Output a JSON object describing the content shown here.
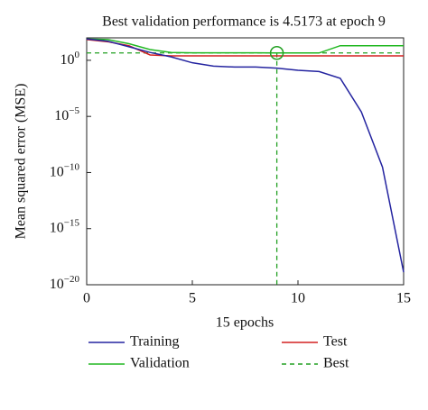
{
  "chart_data": {
    "type": "line",
    "title": "Best validation performance is 4.5173 at epoch 9",
    "xlabel": "15 epochs",
    "ylabel": "Mean squared error (MSE)",
    "x": [
      0,
      1,
      2,
      3,
      4,
      5,
      6,
      7,
      8,
      9,
      10,
      11,
      12,
      13,
      14,
      15
    ],
    "xlim": [
      0,
      15
    ],
    "xticks": [
      0,
      5,
      10,
      15
    ],
    "ylim": [
      1e-20,
      100
    ],
    "log_y": true,
    "yticks": [
      {
        "value": 1,
        "label": "10^0"
      },
      {
        "value": 1e-05,
        "label": "10^-5"
      },
      {
        "value": 1e-10,
        "label": "10^-10"
      },
      {
        "value": 1e-15,
        "label": "10^-15"
      },
      {
        "value": 1e-20,
        "label": "10^-20"
      }
    ],
    "series": [
      {
        "name": "Training",
        "color": "#2424a0",
        "values": [
          79,
          50,
          16,
          5,
          2,
          0.6,
          0.3,
          0.25,
          0.25,
          0.2,
          0.13,
          0.1,
          0.025,
          2.5e-05,
          3e-10,
          1.3e-19
        ]
      },
      {
        "name": "Validation",
        "color": "#22b822",
        "values": [
          80,
          70,
          30,
          9,
          5,
          4.6,
          4.6,
          4.6,
          4.6,
          4.5173,
          4.5,
          4.5,
          20,
          20,
          20,
          20
        ]
      },
      {
        "name": "Test",
        "color": "#d42020",
        "values": [
          70,
          45,
          20,
          3,
          2.5,
          2.5,
          2.5,
          2.5,
          2.5,
          2.5,
          2.5,
          2.5,
          2.5,
          2.5,
          2.5,
          2.5
        ]
      }
    ],
    "best": {
      "name": "Best",
      "color": "#22a022",
      "epoch": 9,
      "value": 4.5173
    }
  }
}
